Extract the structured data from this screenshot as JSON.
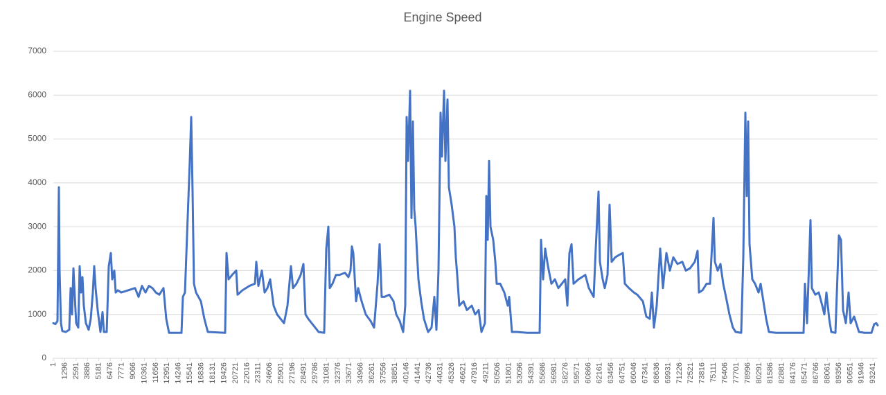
{
  "chart_data": {
    "type": "line",
    "title": "Engine Speed",
    "color": "#4472c4",
    "grid": true,
    "xlim": [
      1,
      93773
    ],
    "ylim": [
      0,
      7000
    ],
    "yticks": [
      0,
      1000,
      2000,
      3000,
      4000,
      5000,
      6000,
      7000
    ],
    "xticks": [
      1,
      1296,
      2591,
      3886,
      5181,
      6476,
      7771,
      9066,
      10361,
      11656,
      12951,
      14246,
      15541,
      16836,
      18131,
      19426,
      20721,
      22016,
      23311,
      24606,
      25901,
      27196,
      28491,
      29786,
      31081,
      32376,
      33671,
      34966,
      36261,
      37556,
      38851,
      40146,
      41441,
      42736,
      44031,
      45326,
      46621,
      47916,
      49211,
      50506,
      51801,
      53096,
      54391,
      55686,
      56981,
      58276,
      59571,
      60866,
      62161,
      63456,
      64751,
      66046,
      67341,
      68636,
      69931,
      71226,
      72521,
      73816,
      75111,
      76406,
      77701,
      78996,
      80291,
      81586,
      82881,
      84176,
      85471,
      86766,
      88061,
      89356,
      90651,
      91946,
      93241
    ],
    "x": [
      1,
      237,
      474,
      631,
      710,
      868,
      1025,
      1419,
      1813,
      1971,
      2129,
      2286,
      2444,
      2601,
      2838,
      2995,
      3153,
      3311,
      3468,
      3705,
      4020,
      4256,
      4493,
      4650,
      4808,
      5044,
      5359,
      5596,
      5753,
      6069,
      6305,
      6541,
      6699,
      6935,
      7093,
      7329,
      7723,
      8511,
      9299,
      9693,
      10087,
      10481,
      10875,
      11269,
      11663,
      12057,
      12530,
      12845,
      13161,
      14579,
      14737,
      14973,
      15209,
      15524,
      15682,
      15839,
      15997,
      16233,
      16785,
      17179,
      17573,
      19543,
      19701,
      19937,
      20331,
      20804,
      20961,
      21513,
      22301,
      22931,
      23089,
      23325,
      23719,
      24035,
      24350,
      24665,
      25059,
      25453,
      25847,
      26241,
      26635,
      27029,
      27265,
      27659,
      28133,
      28448,
      28684,
      28999,
      29393,
      29787,
      30181,
      30811,
      31048,
      31284,
      31441,
      31757,
      32151,
      32545,
      33175,
      33569,
      33806,
      33964,
      34121,
      34437,
      34673,
      35067,
      35540,
      36092,
      36485,
      36879,
      37115,
      37352,
      37667,
      38219,
      38692,
      39007,
      39401,
      39795,
      40031,
      40189,
      40347,
      40583,
      40741,
      40899,
      41056,
      41213,
      41529,
      41844,
      42159,
      42632,
      43025,
      43341,
      43577,
      43813,
      44050,
      44208,
      44444,
      44602,
      44839,
      44996,
      45311,
      45627,
      45784,
      45942,
      46178,
      46651,
      47045,
      47597,
      47991,
      48385,
      48700,
      49094,
      49253,
      49410,
      49568,
      49725,
      50040,
      50277,
      50434,
      50829,
      51301,
      51695,
      51853,
      52168,
      52720,
      53901,
      55320,
      55477,
      55714,
      55950,
      56266,
      56660,
      57053,
      57447,
      57841,
      58235,
      58472,
      58708,
      58945,
      59180,
      59732,
      60520,
      60915,
      61465,
      61701,
      62017,
      62174,
      62490,
      62725,
      63041,
      63277,
      63514,
      63908,
      64302,
      64775,
      65011,
      65484,
      66036,
      66429,
      67060,
      67454,
      67848,
      68084,
      68321,
      68636,
      69030,
      69345,
      69739,
      70133,
      70527,
      70999,
      71551,
      71945,
      72418,
      72970,
      73285,
      73443,
      73837,
      74310,
      74703,
      74940,
      75098,
      75255,
      75570,
      75886,
      76201,
      76516,
      76910,
      77304,
      77619,
      78249,
      78486,
      78722,
      78880,
      79038,
      79195,
      79510,
      79826,
      80220,
      80456,
      80771,
      81087,
      81401,
      82190,
      85341,
      85499,
      85735,
      85972,
      86129,
      86287,
      86681,
      87075,
      87469,
      87705,
      87941,
      88257,
      88493,
      88966,
      89360,
      89597,
      89833,
      90148,
      90463,
      90699,
      91093,
      91645,
      92275,
      93063,
      93378,
      93614,
      93773
    ],
    "values": [
      800,
      780,
      850,
      3900,
      2000,
      800,
      620,
      600,
      650,
      1600,
      1000,
      2050,
      1400,
      800,
      700,
      2100,
      1500,
      1850,
      1200,
      800,
      650,
      900,
      1500,
      2100,
      1600,
      1100,
      600,
      1050,
      600,
      600,
      2100,
      2400,
      1800,
      2000,
      1500,
      1550,
      1500,
      1550,
      1600,
      1400,
      1650,
      1500,
      1650,
      1600,
      1500,
      1450,
      1600,
      900,
      580,
      580,
      1400,
      1500,
      2800,
      4500,
      5500,
      3800,
      1700,
      1500,
      1300,
      900,
      600,
      580,
      2400,
      1800,
      1900,
      2000,
      1450,
      1550,
      1650,
      1700,
      2200,
      1650,
      2000,
      1500,
      1600,
      1800,
      1200,
      1000,
      900,
      800,
      1200,
      2100,
      1600,
      1700,
      1900,
      2150,
      1000,
      900,
      800,
      700,
      600,
      580,
      2500,
      3000,
      1600,
      1700,
      1900,
      1900,
      1950,
      1850,
      2000,
      2550,
      2400,
      1300,
      1600,
      1300,
      1000,
      850,
      700,
      1700,
      2600,
      1400,
      1400,
      1450,
      1300,
      1000,
      850,
      600,
      1200,
      5500,
      4500,
      6100,
      3200,
      5400,
      3400,
      3000,
      1800,
      1300,
      900,
      600,
      700,
      1400,
      650,
      2000,
      5600,
      4600,
      6100,
      4500,
      5900,
      3900,
      3500,
      3000,
      2300,
      1900,
      1200,
      1300,
      1100,
      1200,
      1000,
      1100,
      600,
      800,
      3700,
      2700,
      4500,
      3000,
      2700,
      2200,
      1700,
      1700,
      1500,
      1200,
      1400,
      600,
      600,
      580,
      580,
      2700,
      1800,
      2500,
      2100,
      1700,
      1800,
      1600,
      1700,
      1800,
      1200,
      2400,
      2600,
      1700,
      1800,
      1900,
      1600,
      1400,
      2500,
      3800,
      2200,
      1800,
      1600,
      1900,
      3500,
      2200,
      2300,
      2350,
      2400,
      1700,
      1600,
      1500,
      1450,
      1300,
      950,
      900,
      1500,
      700,
      1200,
      2500,
      1600,
      2400,
      2000,
      2300,
      2150,
      2200,
      2000,
      2050,
      2200,
      2450,
      1500,
      1550,
      1700,
      1700,
      2600,
      3200,
      2200,
      2000,
      2150,
      1700,
      1400,
      1000,
      700,
      600,
      580,
      2300,
      5600,
      3700,
      5400,
      2600,
      1800,
      1700,
      1500,
      1700,
      1300,
      900,
      600,
      580,
      580,
      1700,
      800,
      2200,
      3150,
      1600,
      1450,
      1500,
      1200,
      1000,
      1500,
      900,
      600,
      580,
      2800,
      2700,
      1100,
      800,
      1500,
      800,
      950,
      600,
      580,
      580,
      780,
      800,
      750
    ]
  }
}
